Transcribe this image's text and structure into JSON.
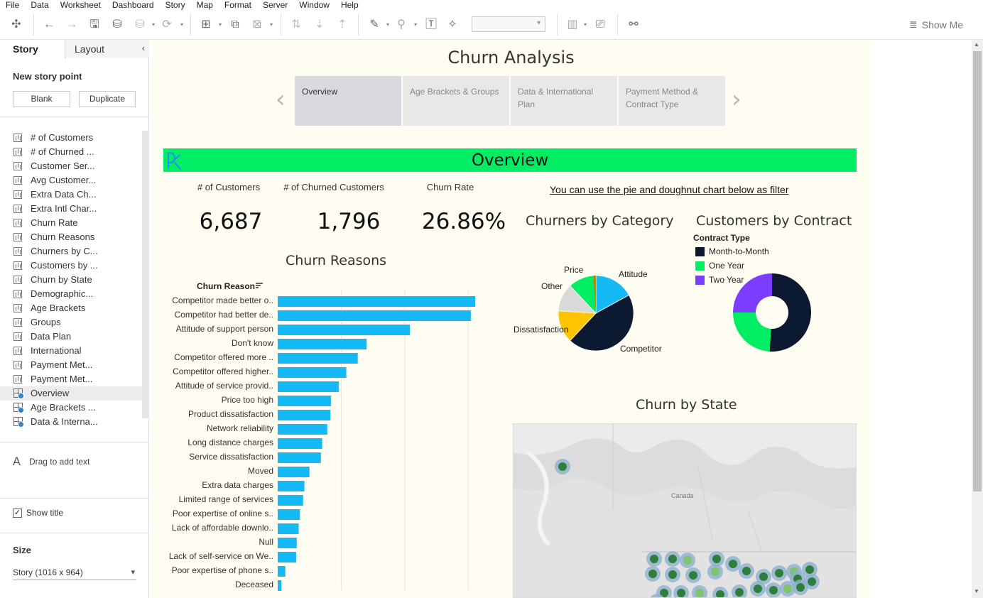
{
  "menu": [
    "File",
    "Data",
    "Worksheet",
    "Dashboard",
    "Story",
    "Map",
    "Format",
    "Server",
    "Window",
    "Help"
  ],
  "toolbar": {
    "show_me": "Show Me"
  },
  "left_panel": {
    "tabs": {
      "story": "Story",
      "layout": "Layout"
    },
    "new_story_point": "New story point",
    "blank_button": "Blank",
    "duplicate_button": "Duplicate",
    "sheets": [
      {
        "label": "# of Customers",
        "type": "sheet"
      },
      {
        "label": "# of Churned ...",
        "type": "sheet"
      },
      {
        "label": "Customer Ser...",
        "type": "sheet"
      },
      {
        "label": "Avg Customer...",
        "type": "sheet"
      },
      {
        "label": "Extra Data Ch...",
        "type": "sheet"
      },
      {
        "label": "Extra Intl Char...",
        "type": "sheet"
      },
      {
        "label": "Churn Rate",
        "type": "sheet"
      },
      {
        "label": "Churn Reasons",
        "type": "sheet"
      },
      {
        "label": "Churners by C...",
        "type": "sheet"
      },
      {
        "label": "Customers by ...",
        "type": "sheet"
      },
      {
        "label": "Churn by State",
        "type": "sheet"
      },
      {
        "label": "Demographic...",
        "type": "sheet"
      },
      {
        "label": "Age Brackets",
        "type": "sheet"
      },
      {
        "label": "Groups",
        "type": "sheet"
      },
      {
        "label": "Data Plan",
        "type": "sheet"
      },
      {
        "label": "International",
        "type": "sheet"
      },
      {
        "label": "Payment Met...",
        "type": "sheet"
      },
      {
        "label": "Payment Met...",
        "type": "sheet"
      },
      {
        "label": "Overview",
        "type": "dashboard",
        "selected": true
      },
      {
        "label": "Age Brackets ...",
        "type": "dashboard"
      },
      {
        "label": "Data & Interna...",
        "type": "dashboard"
      }
    ],
    "drag_text": "Drag to add text",
    "show_title": "Show title",
    "show_title_checked": "✓",
    "size_title": "Size",
    "size_value": "Story (1016 x 964)"
  },
  "story": {
    "title": "Churn Analysis",
    "points": [
      {
        "label": "Overview",
        "active": true
      },
      {
        "label": "Age Brackets & Groups",
        "active": false
      },
      {
        "label": "Data & International Plan",
        "active": false
      },
      {
        "label": "Payment Method & Contract Type",
        "active": false
      }
    ]
  },
  "dashboard": {
    "banner_title": "Overview",
    "kpis": [
      {
        "label": "# of Customers",
        "value": "6,687"
      },
      {
        "label": "# of Churned Customers",
        "value": "1,796"
      },
      {
        "label": "Churn Rate",
        "value": "26.86%"
      }
    ],
    "filter_note": "You can use the pie and doughnut chart below as filter",
    "map_country_label": "Canada"
  },
  "chart_data": [
    {
      "type": "bar",
      "title": "Churn Reasons",
      "orientation": "horizontal",
      "xlabel": "",
      "ylabel": "Churn Reason",
      "xlim": [
        0,
        350
      ],
      "categories": [
        "Competitor made better o..",
        "Competitor had better de..",
        "Attitude of support person",
        "Don't know",
        "Competitor offered more ..",
        "Competitor offered higher..",
        "Attitude of service provid..",
        "Price too high",
        "Product dissatisfaction",
        "Network reliability",
        "Long distance charges",
        "Service dissatisfaction",
        "Moved",
        "Extra data charges",
        "Limited range of services",
        "Poor expertise of online s..",
        "Lack of affordable downlo..",
        "Null",
        "Lack of self-service on We..",
        "Poor expertise of phone s..",
        "Deceased"
      ],
      "values": [
        311,
        304,
        208,
        140,
        126,
        108,
        96,
        84,
        83,
        78,
        70,
        68,
        50,
        42,
        40,
        35,
        33,
        30,
        29,
        12,
        6
      ],
      "color": "#14b9f5"
    },
    {
      "type": "pie",
      "title": "Churners by Category",
      "categories": [
        "Attitude",
        "Competitor",
        "Dissatisfaction",
        "Other",
        "Price"
      ],
      "values": [
        17,
        45,
        14,
        12,
        12
      ],
      "colors": [
        "#14b9f5",
        "#0b1a30",
        "#ffc400",
        "#d9d9d9",
        "#00ed64"
      ],
      "selected_slice_color": "#b8860b"
    },
    {
      "type": "pie",
      "title": "Customers by Contract",
      "hole": true,
      "legend_title": "Contract Type",
      "legend_placement": "top-left",
      "categories": [
        "Month-to-Month",
        "One Year",
        "Two Year"
      ],
      "values": [
        51,
        24,
        25
      ],
      "colors": [
        "#0b1a30",
        "#00ed64",
        "#7b3dff"
      ]
    }
  ],
  "map": {
    "title": "Churn by State",
    "circle_colors": {
      "fill": "#2e7d3a",
      "halo": "#8fb2cf",
      "light": "#7dc46a",
      "red": "#a0102a"
    }
  }
}
